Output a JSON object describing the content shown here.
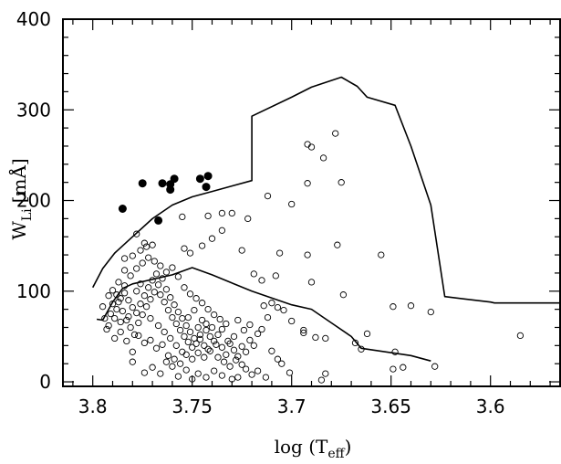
{
  "chart_data": {
    "type": "scatter",
    "title": "",
    "xlabel": "log (T",
    "xlabel_sub": "eff",
    "xlabel_close": ")",
    "ylabel": "W",
    "ylabel_sub": "Li",
    "ylabel_unit": "[mÅ]",
    "xlim": [
      3.815,
      3.565
    ],
    "ylim": [
      -5,
      400
    ],
    "x_ticks": [
      3.8,
      3.75,
      3.7,
      3.65,
      3.6
    ],
    "x_tick_labels": [
      "3.8",
      "3.75",
      "3.7",
      "3.65",
      "3.6"
    ],
    "y_ticks": [
      0,
      100,
      200,
      300,
      400
    ],
    "y_tick_labels": [
      "0",
      "100",
      "200",
      "300",
      "400"
    ],
    "grid": false,
    "series": [
      {
        "marker": "filled-circle",
        "values": [
          [
            3.785,
            191
          ],
          [
            3.775,
            219
          ],
          [
            3.767,
            178
          ],
          [
            3.765,
            219
          ],
          [
            3.761,
            212
          ],
          [
            3.761,
            218
          ],
          [
            3.759,
            224
          ],
          [
            3.746,
            224
          ],
          [
            3.743,
            215
          ],
          [
            3.742,
            227
          ]
        ]
      },
      {
        "marker": "open-circle",
        "values": [
          [
            3.678,
            274
          ],
          [
            3.692,
            262
          ],
          [
            3.69,
            259
          ],
          [
            3.684,
            247
          ],
          [
            3.7,
            196
          ],
          [
            3.675,
            220
          ],
          [
            3.692,
            219
          ],
          [
            3.712,
            205
          ],
          [
            3.722,
            180
          ],
          [
            3.73,
            186
          ],
          [
            3.735,
            186
          ],
          [
            3.735,
            167
          ],
          [
            3.742,
            183
          ],
          [
            3.755,
            182
          ],
          [
            3.778,
            163
          ],
          [
            3.774,
            153
          ],
          [
            3.77,
            151
          ],
          [
            3.745,
            150
          ],
          [
            3.754,
            147
          ],
          [
            3.751,
            142
          ],
          [
            3.74,
            158
          ],
          [
            3.725,
            145
          ],
          [
            3.706,
            142
          ],
          [
            3.692,
            140
          ],
          [
            3.677,
            151
          ],
          [
            3.655,
            140
          ],
          [
            3.719,
            119
          ],
          [
            3.715,
            112
          ],
          [
            3.708,
            117
          ],
          [
            3.69,
            110
          ],
          [
            3.674,
            96
          ],
          [
            3.649,
            83
          ],
          [
            3.64,
            84
          ],
          [
            3.63,
            77
          ],
          [
            3.585,
            51
          ],
          [
            3.662,
            53
          ],
          [
            3.665,
            36
          ],
          [
            3.668,
            43
          ],
          [
            3.648,
            33
          ],
          [
            3.644,
            16
          ],
          [
            3.649,
            14
          ],
          [
            3.628,
            17
          ],
          [
            3.685,
            2
          ],
          [
            3.683,
            9
          ],
          [
            3.694,
            54
          ],
          [
            3.694,
            57
          ],
          [
            3.688,
            49
          ],
          [
            3.683,
            48
          ],
          [
            3.7,
            67
          ],
          [
            3.704,
            79
          ],
          [
            3.707,
            82
          ],
          [
            3.71,
            87
          ],
          [
            3.714,
            84
          ],
          [
            3.712,
            71
          ],
          [
            3.71,
            34
          ],
          [
            3.707,
            25
          ],
          [
            3.705,
            20
          ],
          [
            3.701,
            10
          ],
          [
            3.713,
            5
          ],
          [
            3.717,
            12
          ],
          [
            3.72,
            8
          ],
          [
            3.723,
            14
          ],
          [
            3.727,
            5
          ],
          [
            3.73,
            3
          ],
          [
            3.735,
            7
          ],
          [
            3.739,
            12
          ],
          [
            3.743,
            5
          ],
          [
            3.747,
            9
          ],
          [
            3.75,
            3
          ],
          [
            3.753,
            13
          ],
          [
            3.757,
            6
          ],
          [
            3.76,
            17
          ],
          [
            3.763,
            22
          ],
          [
            3.766,
            9
          ],
          [
            3.77,
            16
          ],
          [
            3.774,
            10
          ],
          [
            3.78,
            22
          ],
          [
            3.721,
            63
          ],
          [
            3.724,
            57
          ],
          [
            3.727,
            68
          ],
          [
            3.729,
            50
          ],
          [
            3.732,
            45
          ],
          [
            3.735,
            58
          ],
          [
            3.738,
            41
          ],
          [
            3.741,
            34
          ],
          [
            3.744,
            27
          ],
          [
            3.747,
            32
          ],
          [
            3.75,
            25
          ],
          [
            3.753,
            30
          ],
          [
            3.756,
            20
          ],
          [
            3.759,
            25
          ],
          [
            3.762,
            29
          ],
          [
            3.765,
            41
          ],
          [
            3.768,
            37
          ],
          [
            3.771,
            46
          ],
          [
            3.774,
            43
          ],
          [
            3.777,
            51
          ],
          [
            3.78,
            33
          ],
          [
            3.783,
            45
          ],
          [
            3.786,
            55
          ],
          [
            3.789,
            48
          ],
          [
            3.792,
            62
          ],
          [
            3.794,
            70
          ],
          [
            3.795,
            83
          ],
          [
            3.792,
            95
          ],
          [
            3.79,
            101
          ],
          [
            3.787,
            110
          ],
          [
            3.784,
            106
          ],
          [
            3.781,
            117
          ],
          [
            3.778,
            125
          ],
          [
            3.775,
            131
          ],
          [
            3.772,
            137
          ],
          [
            3.769,
            133
          ],
          [
            3.766,
            128
          ],
          [
            3.763,
            121
          ],
          [
            3.76,
            126
          ],
          [
            3.757,
            116
          ],
          [
            3.754,
            104
          ],
          [
            3.751,
            97
          ],
          [
            3.748,
            92
          ],
          [
            3.745,
            87
          ],
          [
            3.742,
            80
          ],
          [
            3.739,
            74
          ],
          [
            3.736,
            69
          ],
          [
            3.733,
            64
          ],
          [
            3.784,
            123
          ],
          [
            3.784,
            136
          ],
          [
            3.78,
            139
          ],
          [
            3.776,
            145
          ],
          [
            3.773,
            149
          ],
          [
            3.787,
            88
          ],
          [
            3.785,
            78
          ],
          [
            3.783,
            68
          ],
          [
            3.781,
            60
          ],
          [
            3.779,
            52
          ],
          [
            3.777,
            65
          ],
          [
            3.775,
            74
          ],
          [
            3.773,
            83
          ],
          [
            3.771,
            91
          ],
          [
            3.769,
            99
          ],
          [
            3.767,
            107
          ],
          [
            3.765,
            114
          ],
          [
            3.763,
            102
          ],
          [
            3.761,
            93
          ],
          [
            3.759,
            85
          ],
          [
            3.757,
            77
          ],
          [
            3.755,
            70
          ],
          [
            3.753,
            62
          ],
          [
            3.751,
            55
          ],
          [
            3.749,
            48
          ],
          [
            3.747,
            60
          ],
          [
            3.745,
            68
          ],
          [
            3.743,
            57
          ],
          [
            3.741,
            50
          ],
          [
            3.739,
            45
          ],
          [
            3.737,
            52
          ],
          [
            3.735,
            38
          ],
          [
            3.733,
            30
          ],
          [
            3.731,
            42
          ],
          [
            3.729,
            35
          ],
          [
            3.727,
            28
          ],
          [
            3.725,
            39
          ],
          [
            3.723,
            33
          ],
          [
            3.721,
            46
          ],
          [
            3.719,
            40
          ],
          [
            3.717,
            53
          ],
          [
            3.715,
            58
          ],
          [
            3.789,
            70
          ],
          [
            3.788,
            80
          ],
          [
            3.786,
            92
          ],
          [
            3.784,
            98
          ],
          [
            3.782,
            90
          ],
          [
            3.78,
            82
          ],
          [
            3.778,
            76
          ],
          [
            3.776,
            86
          ],
          [
            3.774,
            95
          ],
          [
            3.772,
            104
          ],
          [
            3.77,
            112
          ],
          [
            3.768,
            119
          ],
          [
            3.766,
            96
          ],
          [
            3.764,
            88
          ],
          [
            3.762,
            79
          ],
          [
            3.76,
            71
          ],
          [
            3.758,
            64
          ],
          [
            3.756,
            57
          ],
          [
            3.754,
            50
          ],
          [
            3.752,
            44
          ],
          [
            3.75,
            38
          ],
          [
            3.748,
            42
          ],
          [
            3.746,
            47
          ],
          [
            3.744,
            40
          ],
          [
            3.742,
            36
          ],
          [
            3.793,
            58
          ],
          [
            3.791,
            75
          ],
          [
            3.79,
            86
          ],
          [
            3.788,
            96
          ],
          [
            3.786,
            66
          ],
          [
            3.782,
            72
          ],
          [
            3.778,
            100
          ],
          [
            3.776,
            108
          ],
          [
            3.771,
            70
          ],
          [
            3.767,
            62
          ],
          [
            3.764,
            55
          ],
          [
            3.761,
            48
          ],
          [
            3.758,
            40
          ],
          [
            3.755,
            33
          ],
          [
            3.752,
            71
          ],
          [
            3.749,
            79
          ],
          [
            3.746,
            52
          ],
          [
            3.743,
            64
          ],
          [
            3.74,
            60
          ],
          [
            3.737,
            27
          ],
          [
            3.734,
            22
          ],
          [
            3.731,
            17
          ],
          [
            3.728,
            24
          ],
          [
            3.725,
            19
          ]
        ]
      }
    ],
    "curves": [
      {
        "name": "",
        "values": [
          [
            3.8,
            104
          ],
          [
            3.795,
            125
          ],
          [
            3.789,
            142
          ],
          [
            3.78,
            160
          ],
          [
            3.77,
            180
          ],
          [
            3.76,
            195
          ],
          [
            3.75,
            204
          ],
          [
            3.74,
            210
          ],
          [
            3.73,
            216
          ],
          [
            3.72,
            222
          ],
          [
            3.72,
            293
          ],
          [
            3.7,
            314
          ],
          [
            3.69,
            325
          ],
          [
            3.675,
            336
          ],
          [
            3.667,
            326
          ],
          [
            3.662,
            314
          ],
          [
            3.648,
            305
          ],
          [
            3.64,
            260
          ],
          [
            3.63,
            195
          ],
          [
            3.623,
            94
          ],
          [
            3.6,
            88
          ],
          [
            3.598,
            87
          ],
          [
            3.565,
            87
          ]
        ]
      },
      {
        "name": "",
        "values": [
          [
            3.798,
            69
          ],
          [
            3.795,
            68
          ],
          [
            3.79,
            88
          ],
          [
            3.785,
            103
          ],
          [
            3.78,
            108
          ],
          [
            3.77,
            113
          ],
          [
            3.76,
            118
          ],
          [
            3.75,
            126
          ],
          [
            3.74,
            118
          ],
          [
            3.72,
            100
          ],
          [
            3.7,
            85
          ],
          [
            3.69,
            80
          ],
          [
            3.68,
            65
          ],
          [
            3.67,
            50
          ],
          [
            3.665,
            37
          ],
          [
            3.64,
            29
          ],
          [
            3.63,
            23
          ]
        ]
      }
    ]
  }
}
